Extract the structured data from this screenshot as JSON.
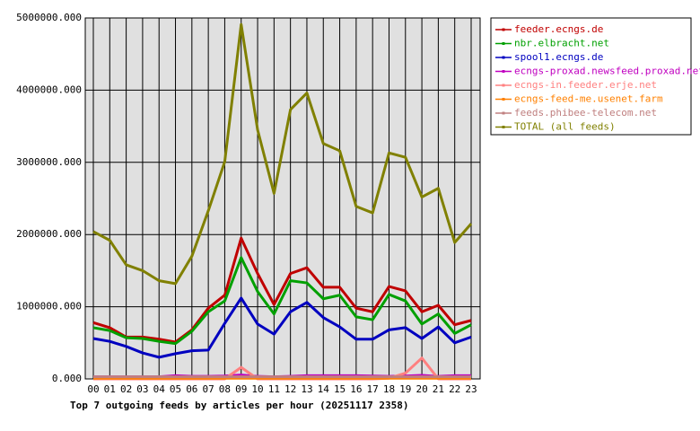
{
  "chart_data": {
    "type": "line",
    "title": "Top 7 outgoing feeds by articles per hour (20251117 2358)",
    "categories": [
      "00",
      "01",
      "02",
      "03",
      "04",
      "05",
      "06",
      "07",
      "08",
      "09",
      "10",
      "11",
      "12",
      "13",
      "14",
      "15",
      "16",
      "17",
      "18",
      "19",
      "20",
      "21",
      "22",
      "23"
    ],
    "ylim": [
      0,
      5000000
    ],
    "yticks": [
      {
        "value": 0,
        "label": "0.000"
      },
      {
        "value": 1000000,
        "label": "1000000.000"
      },
      {
        "value": 2000000,
        "label": "2000000.000"
      },
      {
        "value": 3000000,
        "label": "3000000.000"
      },
      {
        "value": 4000000,
        "label": "4000000.000"
      },
      {
        "value": 5000000,
        "label": "5000000.000"
      }
    ],
    "grid": true,
    "legend": "right",
    "series": [
      {
        "name": "feeder.ecngs.de",
        "color": "#c00000",
        "values": [
          780000,
          710000,
          580000,
          580000,
          550000,
          510000,
          680000,
          980000,
          1160000,
          1950000,
          1460000,
          1030000,
          1460000,
          1540000,
          1270000,
          1270000,
          980000,
          930000,
          1280000,
          1220000,
          930000,
          1020000,
          750000,
          810000
        ]
      },
      {
        "name": "nbr.elbracht.net",
        "color": "#00a000",
        "values": [
          710000,
          670000,
          570000,
          560000,
          520000,
          490000,
          660000,
          930000,
          1080000,
          1680000,
          1210000,
          900000,
          1360000,
          1330000,
          1110000,
          1160000,
          860000,
          820000,
          1170000,
          1080000,
          760000,
          900000,
          630000,
          750000
        ]
      },
      {
        "name": "spool1.ecngs.de",
        "color": "#0000c0",
        "values": [
          560000,
          520000,
          450000,
          360000,
          300000,
          350000,
          390000,
          400000,
          770000,
          1120000,
          760000,
          620000,
          930000,
          1060000,
          850000,
          720000,
          550000,
          550000,
          680000,
          710000,
          560000,
          720000,
          500000,
          580000
        ]
      },
      {
        "name": "ecngs-proxad.newsfeed.proxad.net",
        "color": "#c000c0",
        "values": [
          30000,
          30000,
          30000,
          30000,
          30000,
          45000,
          35000,
          35000,
          40000,
          55000,
          35000,
          30000,
          35000,
          45000,
          45000,
          45000,
          45000,
          40000,
          35000,
          40000,
          50000,
          35000,
          45000,
          45000
        ]
      },
      {
        "name": "ecngs-in.feeder.erje.net",
        "color": "#ff8080",
        "values": [
          0,
          0,
          0,
          0,
          0,
          0,
          0,
          0,
          0,
          160000,
          0,
          0,
          0,
          0,
          0,
          0,
          0,
          0,
          10000,
          80000,
          290000,
          0,
          0,
          0
        ]
      },
      {
        "name": "ecngs-feed-me.usenet.farm",
        "color": "#ff8000",
        "values": [
          10000,
          10000,
          10000,
          10000,
          10000,
          10000,
          10000,
          10000,
          10000,
          10000,
          10000,
          10000,
          10000,
          10000,
          10000,
          10000,
          10000,
          10000,
          10000,
          10000,
          10000,
          10000,
          10000,
          10000
        ]
      },
      {
        "name": "feeds.phibee-telecom.net",
        "color": "#c08080",
        "values": [
          30000,
          30000,
          30000,
          30000,
          30000,
          30000,
          30000,
          30000,
          30000,
          30000,
          30000,
          30000,
          30000,
          30000,
          30000,
          30000,
          30000,
          30000,
          30000,
          30000,
          30000,
          30000,
          30000,
          30000
        ]
      },
      {
        "name": "TOTAL (all feeds)",
        "color": "#808000",
        "values": [
          2040000,
          1920000,
          1580000,
          1500000,
          1360000,
          1320000,
          1700000,
          2330000,
          3010000,
          4910000,
          3450000,
          2570000,
          3730000,
          3960000,
          3260000,
          3160000,
          2390000,
          2300000,
          3130000,
          3070000,
          2520000,
          2640000,
          1890000,
          2150000
        ]
      }
    ]
  }
}
